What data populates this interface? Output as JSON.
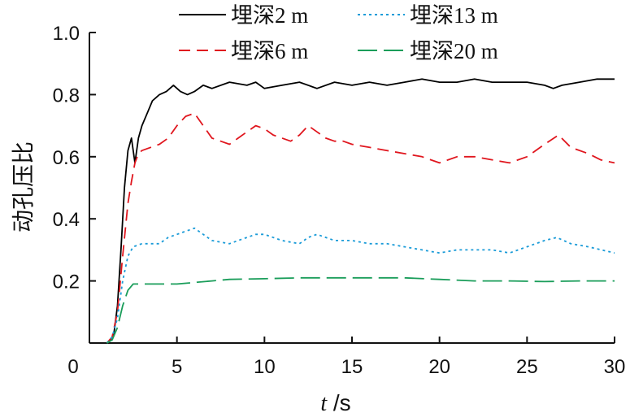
{
  "chart_data": {
    "type": "line",
    "xlabel_italic": "t",
    "xlabel_unit": " /s",
    "ylabel": "动孔压比",
    "xlim": [
      0,
      30
    ],
    "ylim": [
      0,
      1.0
    ],
    "x_ticks": [
      "0",
      "5",
      "10",
      "15",
      "20",
      "25",
      "30"
    ],
    "y_ticks": [
      "0.2",
      "0.4",
      "0.6",
      "0.8",
      "1.0"
    ],
    "grid": false,
    "legend_position": "top",
    "series": [
      {
        "name": "埋深2 m",
        "color": "#000000",
        "dash": "solid",
        "points": [
          [
            1.0,
            0.0
          ],
          [
            1.2,
            0.01
          ],
          [
            1.4,
            0.03
          ],
          [
            1.6,
            0.12
          ],
          [
            1.8,
            0.3
          ],
          [
            2.0,
            0.5
          ],
          [
            2.2,
            0.62
          ],
          [
            2.4,
            0.66
          ],
          [
            2.6,
            0.58
          ],
          [
            2.8,
            0.66
          ],
          [
            3.0,
            0.7
          ],
          [
            3.3,
            0.74
          ],
          [
            3.6,
            0.78
          ],
          [
            4.0,
            0.8
          ],
          [
            4.4,
            0.81
          ],
          [
            4.8,
            0.83
          ],
          [
            5.2,
            0.81
          ],
          [
            5.6,
            0.8
          ],
          [
            6.0,
            0.81
          ],
          [
            6.5,
            0.83
          ],
          [
            7.0,
            0.82
          ],
          [
            8.0,
            0.84
          ],
          [
            9.0,
            0.83
          ],
          [
            9.5,
            0.84
          ],
          [
            10.0,
            0.82
          ],
          [
            11.0,
            0.83
          ],
          [
            12.0,
            0.84
          ],
          [
            13.0,
            0.82
          ],
          [
            14.0,
            0.84
          ],
          [
            15.0,
            0.83
          ],
          [
            16.0,
            0.84
          ],
          [
            17.0,
            0.83
          ],
          [
            18.0,
            0.84
          ],
          [
            19.0,
            0.85
          ],
          [
            20.0,
            0.84
          ],
          [
            21.0,
            0.84
          ],
          [
            22.0,
            0.85
          ],
          [
            23.0,
            0.84
          ],
          [
            24.0,
            0.84
          ],
          [
            25.0,
            0.84
          ],
          [
            26.0,
            0.83
          ],
          [
            26.5,
            0.82
          ],
          [
            27.0,
            0.83
          ],
          [
            28.0,
            0.84
          ],
          [
            29.0,
            0.85
          ],
          [
            30.0,
            0.85
          ]
        ]
      },
      {
        "name": "埋深6 m",
        "color": "#e0161e",
        "dash": "14 8",
        "points": [
          [
            1.0,
            0.0
          ],
          [
            1.3,
            0.02
          ],
          [
            1.6,
            0.1
          ],
          [
            1.9,
            0.28
          ],
          [
            2.2,
            0.45
          ],
          [
            2.4,
            0.52
          ],
          [
            2.6,
            0.58
          ],
          [
            2.8,
            0.61
          ],
          [
            3.0,
            0.62
          ],
          [
            3.5,
            0.63
          ],
          [
            4.0,
            0.64
          ],
          [
            4.5,
            0.66
          ],
          [
            5.0,
            0.7
          ],
          [
            5.5,
            0.73
          ],
          [
            6.0,
            0.74
          ],
          [
            6.5,
            0.7
          ],
          [
            7.0,
            0.66
          ],
          [
            7.5,
            0.65
          ],
          [
            8.0,
            0.64
          ],
          [
            8.5,
            0.66
          ],
          [
            9.0,
            0.68
          ],
          [
            9.5,
            0.7
          ],
          [
            10.0,
            0.69
          ],
          [
            10.5,
            0.67
          ],
          [
            11.0,
            0.66
          ],
          [
            11.5,
            0.65
          ],
          [
            12.0,
            0.67
          ],
          [
            12.5,
            0.7
          ],
          [
            13.0,
            0.68
          ],
          [
            13.5,
            0.66
          ],
          [
            14.0,
            0.65
          ],
          [
            14.5,
            0.65
          ],
          [
            15.0,
            0.64
          ],
          [
            16.0,
            0.63
          ],
          [
            17.0,
            0.62
          ],
          [
            18.0,
            0.61
          ],
          [
            19.0,
            0.6
          ],
          [
            20.0,
            0.58
          ],
          [
            21.0,
            0.6
          ],
          [
            22.0,
            0.6
          ],
          [
            23.0,
            0.59
          ],
          [
            24.0,
            0.58
          ],
          [
            25.0,
            0.6
          ],
          [
            26.0,
            0.64
          ],
          [
            26.8,
            0.67
          ],
          [
            27.5,
            0.63
          ],
          [
            28.5,
            0.61
          ],
          [
            29.2,
            0.59
          ],
          [
            30.0,
            0.58
          ]
        ]
      },
      {
        "name": "埋深13 m",
        "color": "#1a9bd8",
        "dash": "3 4",
        "points": [
          [
            1.0,
            0.0
          ],
          [
            1.3,
            0.02
          ],
          [
            1.6,
            0.08
          ],
          [
            1.9,
            0.2
          ],
          [
            2.2,
            0.28
          ],
          [
            2.5,
            0.31
          ],
          [
            3.0,
            0.32
          ],
          [
            4.0,
            0.32
          ],
          [
            4.5,
            0.34
          ],
          [
            5.0,
            0.35
          ],
          [
            5.5,
            0.36
          ],
          [
            6.0,
            0.37
          ],
          [
            6.5,
            0.35
          ],
          [
            7.0,
            0.33
          ],
          [
            8.0,
            0.32
          ],
          [
            8.5,
            0.33
          ],
          [
            9.0,
            0.34
          ],
          [
            9.5,
            0.35
          ],
          [
            10.0,
            0.35
          ],
          [
            11.0,
            0.33
          ],
          [
            12.0,
            0.32
          ],
          [
            12.5,
            0.34
          ],
          [
            13.0,
            0.35
          ],
          [
            14.0,
            0.33
          ],
          [
            15.0,
            0.33
          ],
          [
            16.0,
            0.32
          ],
          [
            17.0,
            0.32
          ],
          [
            18.0,
            0.31
          ],
          [
            19.0,
            0.3
          ],
          [
            20.0,
            0.29
          ],
          [
            21.0,
            0.3
          ],
          [
            22.0,
            0.3
          ],
          [
            23.0,
            0.3
          ],
          [
            24.0,
            0.29
          ],
          [
            25.0,
            0.31
          ],
          [
            26.0,
            0.33
          ],
          [
            26.7,
            0.34
          ],
          [
            27.5,
            0.32
          ],
          [
            28.5,
            0.31
          ],
          [
            30.0,
            0.29
          ]
        ]
      },
      {
        "name": "埋深20 m",
        "color": "#1a9d5a",
        "dash": "24 8",
        "points": [
          [
            1.0,
            0.0
          ],
          [
            1.3,
            0.01
          ],
          [
            1.6,
            0.05
          ],
          [
            1.9,
            0.12
          ],
          [
            2.2,
            0.17
          ],
          [
            2.5,
            0.19
          ],
          [
            3.0,
            0.19
          ],
          [
            4.0,
            0.19
          ],
          [
            5.0,
            0.19
          ],
          [
            6.0,
            0.195
          ],
          [
            7.0,
            0.2
          ],
          [
            8.0,
            0.205
          ],
          [
            10.0,
            0.207
          ],
          [
            12.0,
            0.21
          ],
          [
            15.0,
            0.21
          ],
          [
            18.0,
            0.21
          ],
          [
            20.0,
            0.205
          ],
          [
            22.0,
            0.2
          ],
          [
            24.0,
            0.2
          ],
          [
            26.0,
            0.198
          ],
          [
            28.0,
            0.2
          ],
          [
            30.0,
            0.2
          ]
        ]
      }
    ]
  }
}
